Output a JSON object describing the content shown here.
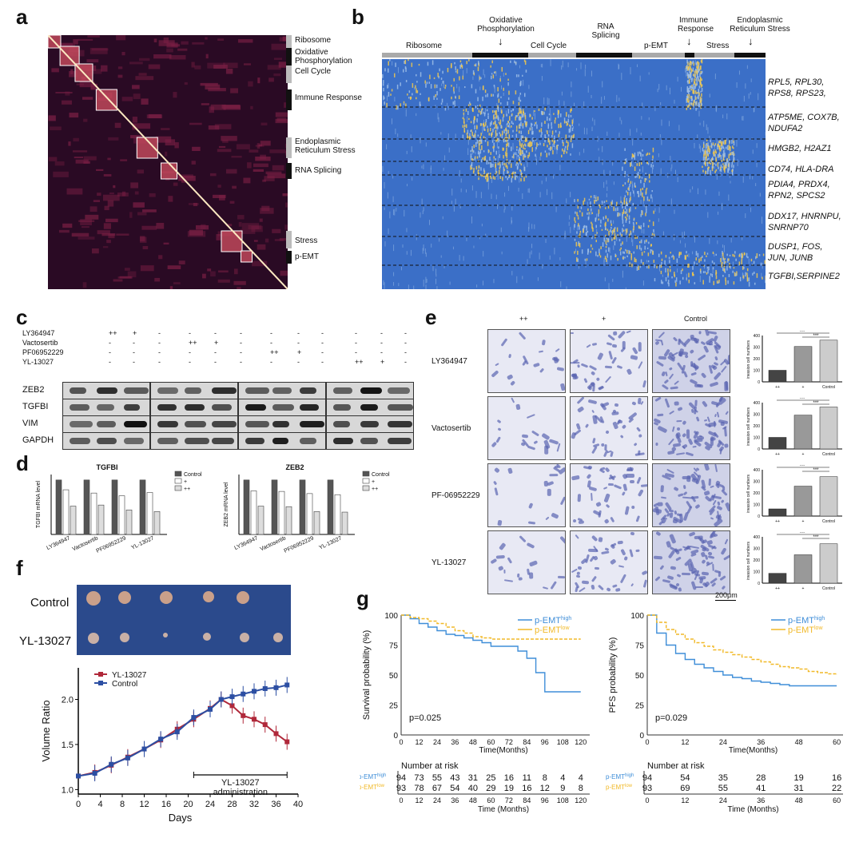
{
  "panel_labels": {
    "a": "a",
    "b": "b",
    "c": "c",
    "d": "d",
    "e": "e",
    "f": "f",
    "g": "g"
  },
  "panel_a": {
    "modules": [
      "Ribosome",
      "Oxidative Phosphorylation",
      "Cell Cycle",
      "Immune Response",
      "Endoplasmic Reticulum Stress",
      "RNA Splicing",
      "Stress",
      "p-EMT"
    ],
    "colors": {
      "bg": "#2a0a24",
      "hot": "#fde9c2",
      "mid": "#b43a5a"
    }
  },
  "panel_b": {
    "header_segments": [
      "Ribosome",
      "Oxidative Phosphorylation",
      "Cell Cycle",
      "RNA Splicing",
      "p-EMT",
      "Immune Response",
      "Stress",
      "Endoplasmic Reticulum Stress"
    ],
    "row_genes": [
      [
        "RPL5, RPL30,",
        "RPS8, RPS23,"
      ],
      [
        "ATP5ME, COX7B,",
        "NDUFA2"
      ],
      [
        "HMGB2, H2AZ1"
      ],
      [
        "CD74, HLA-DRA"
      ],
      [
        "PDIA4, PRDX4,",
        "RPN2, SPCS2"
      ],
      [
        "DDX17, HNRNPU,",
        "SNRNP70"
      ],
      [
        "DUSP1, FOS,",
        "JUN, JUNB"
      ],
      [
        "TGFBI,SERPINE2"
      ]
    ],
    "colors": {
      "low": "#3b6fc7",
      "high": "#f2c94c"
    }
  },
  "panel_c": {
    "treatments": [
      "LY364947",
      "Vactosertib",
      "PF06952229",
      "YL-13027"
    ],
    "dose_rows": [
      [
        "++",
        "+",
        "-",
        "-",
        "-",
        "-",
        "-",
        "-",
        "-",
        "-",
        "-",
        "-"
      ],
      [
        "-",
        "-",
        "-",
        "++",
        "+",
        "-",
        "-",
        "-",
        "-",
        "-",
        "-",
        "-"
      ],
      [
        "-",
        "-",
        "-",
        "-",
        "-",
        "-",
        "++",
        "+",
        "-",
        "-",
        "-",
        "-"
      ],
      [
        "-",
        "-",
        "-",
        "-",
        "-",
        "-",
        "-",
        "-",
        "-",
        "++",
        "+",
        "-"
      ]
    ],
    "proteins": [
      "ZEB2",
      "TGFBI",
      "VIM",
      "GAPDH"
    ]
  },
  "panel_d": {
    "charts": [
      {
        "type": "bar",
        "title": "TGFBI",
        "ylabel": "TGFBI mRNA level",
        "categories": [
          "LY364947",
          "Vactosertib",
          "PF06952229",
          "YL-13027"
        ],
        "series": [
          {
            "name": "Control",
            "values": [
              1.0,
              1.0,
              1.0,
              1.0
            ]
          },
          {
            "name": "+",
            "values": [
              0.82,
              0.76,
              0.71,
              0.77
            ]
          },
          {
            "name": "++",
            "values": [
              0.52,
              0.54,
              0.45,
              0.42
            ]
          }
        ],
        "ylim": [
          0,
          1.1
        ],
        "legend": "top-right"
      },
      {
        "type": "bar",
        "title": "ZEB2",
        "ylabel": "ZEB2 mRNA level",
        "categories": [
          "LY364947",
          "Vactosertib",
          "PF06952229",
          "YL-13027"
        ],
        "series": [
          {
            "name": "Control",
            "values": [
              1.0,
              1.0,
              1.0,
              1.0
            ]
          },
          {
            "name": "+",
            "values": [
              0.8,
              0.79,
              0.75,
              0.73
            ]
          },
          {
            "name": "++",
            "values": [
              0.52,
              0.51,
              0.42,
              0.41
            ]
          }
        ],
        "ylim": [
          0,
          1.1
        ],
        "legend": "top-right"
      }
    ]
  },
  "panel_e": {
    "col_labels": [
      "++",
      "+",
      "Control"
    ],
    "row_labels": [
      "LY364947",
      "Vactosertib",
      "PF-06952229",
      "YL-13027"
    ],
    "scale_bar": "200μm",
    "bar_ylabel": "invasion cell numbers",
    "bar_xlabels": [
      "++",
      "+",
      "Control"
    ],
    "sig": [
      "***",
      "***"
    ],
    "bar_values": [
      [
        100,
        305,
        360
      ],
      [
        100,
        292,
        362
      ],
      [
        62,
        258,
        340
      ],
      [
        85,
        245,
        340
      ]
    ],
    "ylim": [
      0,
      400
    ]
  },
  "panel_f": {
    "photo_labels": [
      "Control",
      "YL-13027"
    ],
    "chart_data": {
      "type": "line",
      "xlabel": "Days",
      "ylabel": "Volume Ratio",
      "xticks": [
        0,
        4,
        8,
        12,
        16,
        20,
        24,
        28,
        32,
        36,
        40
      ],
      "yticks": [
        "1.0",
        "1.5",
        "2.0"
      ],
      "xlim": [
        0,
        40
      ],
      "ylim": [
        0.95,
        2.35
      ],
      "series": [
        {
          "name": "YL-13027",
          "color": "#b0283a",
          "x": [
            0,
            3,
            6,
            9,
            12,
            15,
            18,
            21,
            24,
            26,
            28,
            30,
            32,
            34,
            36,
            38
          ],
          "y": [
            1.15,
            1.19,
            1.27,
            1.36,
            1.45,
            1.55,
            1.67,
            1.78,
            1.9,
            2.0,
            1.93,
            1.82,
            1.78,
            1.72,
            1.62,
            1.53
          ]
        },
        {
          "name": "Control",
          "color": "#2c4fa3",
          "x": [
            0,
            3,
            6,
            9,
            12,
            15,
            18,
            21,
            24,
            26,
            28,
            30,
            32,
            34,
            36,
            38
          ],
          "y": [
            1.15,
            1.18,
            1.28,
            1.35,
            1.45,
            1.56,
            1.64,
            1.8,
            1.89,
            2.0,
            2.03,
            2.06,
            2.09,
            2.12,
            2.13,
            2.16
          ]
        }
      ],
      "annotation": [
        "YL-13027",
        "administration"
      ],
      "legend": "top-left"
    }
  },
  "panel_g": {
    "charts": [
      {
        "type": "line",
        "ylabel": "Survival probability (%)",
        "xlabel": "Time(Months)",
        "pvalue": "p=0.025",
        "yticks": [
          "0",
          "25",
          "50",
          "75",
          "100"
        ],
        "xticks": [
          "0",
          "12",
          "24",
          "36",
          "48",
          "60",
          "72",
          "84",
          "96",
          "108",
          "120"
        ],
        "xlim": [
          0,
          126
        ],
        "ylim": [
          0,
          100
        ],
        "legend_high": "p-EMT",
        "legend_high_sup": "high",
        "legend_low": "p-EMT",
        "legend_low_sup": "low",
        "series": [
          {
            "name": "p-EMT high",
            "color": "#3f8ed8",
            "x": [
              0,
              6,
              12,
              18,
              24,
              30,
              36,
              42,
              48,
              54,
              60,
              66,
              72,
              78,
              84,
              90,
              96,
              102,
              108,
              114,
              120
            ],
            "y": [
              100,
              97,
              93,
              90,
              87,
              84,
              83,
              81,
              79,
              77,
              74,
              74,
              74,
              70,
              64,
              52,
              36,
              36,
              36,
              36,
              36
            ]
          },
          {
            "name": "p-EMT low",
            "color": "#f1b928",
            "x": [
              0,
              6,
              12,
              18,
              24,
              30,
              36,
              42,
              48,
              54,
              60,
              66,
              72,
              78,
              84,
              90,
              96,
              102,
              108,
              114,
              120
            ],
            "y": [
              100,
              98,
              97,
              95,
              93,
              90,
              87,
              85,
              82,
              81,
              80,
              80,
              80,
              80,
              80,
              80,
              80,
              80,
              80,
              80,
              80
            ]
          }
        ],
        "risk_title": "Number at risk",
        "risk_high": [
          "94",
          "73",
          "55",
          "43",
          "31",
          "25",
          "16",
          "11",
          "8",
          "4",
          "4"
        ],
        "risk_low": [
          "93",
          "78",
          "67",
          "54",
          "40",
          "29",
          "19",
          "16",
          "12",
          "9",
          "8"
        ],
        "risk_xlabel": "Time (Months)"
      },
      {
        "type": "line",
        "ylabel": "PFS probability (%)",
        "xlabel": "Time(Months)",
        "pvalue": "p=0.029",
        "yticks": [
          "0",
          "25",
          "50",
          "75",
          "100"
        ],
        "xticks": [
          "0",
          "12",
          "24",
          "36",
          "48",
          "60"
        ],
        "xlim": [
          0,
          62
        ],
        "ylim": [
          0,
          100
        ],
        "legend_high": "p-EMT",
        "legend_high_sup": "high",
        "legend_low": "p-EMT",
        "legend_low_sup": "low",
        "series": [
          {
            "name": "p-EMT high",
            "color": "#3f8ed8",
            "x": [
              0,
              3,
              6,
              9,
              12,
              15,
              18,
              21,
              24,
              27,
              30,
              33,
              36,
              39,
              42,
              45,
              48,
              51,
              54,
              57,
              60
            ],
            "y": [
              100,
              85,
              75,
              68,
              63,
              59,
              56,
              53,
              50,
              48,
              47,
              45,
              44,
              43,
              42,
              41,
              41,
              41,
              41,
              41,
              41
            ]
          },
          {
            "name": "p-EMT low",
            "color": "#f1b928",
            "x": [
              0,
              3,
              6,
              9,
              12,
              15,
              18,
              21,
              24,
              27,
              30,
              33,
              36,
              39,
              42,
              45,
              48,
              51,
              54,
              57,
              60
            ],
            "y": [
              100,
              94,
              88,
              84,
              80,
              77,
              74,
              71,
              69,
              67,
              65,
              63,
              61,
              59,
              57,
              56,
              55,
              53,
              52,
              51,
              50
            ]
          }
        ],
        "risk_title": "Number at risk",
        "risk_high": [
          "94",
          "54",
          "35",
          "28",
          "19",
          "16"
        ],
        "risk_low": [
          "93",
          "69",
          "55",
          "41",
          "31",
          "22"
        ],
        "risk_xlabel": "Time (Months)"
      }
    ]
  }
}
